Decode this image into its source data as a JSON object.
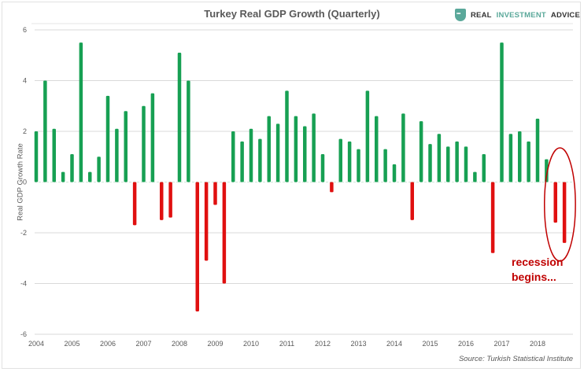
{
  "header": {
    "title": "Turkey Real GDP Growth (Quarterly)",
    "logo": {
      "icon": "shield-chat-icon",
      "word1": "REAL",
      "word2": "INVESTMENT",
      "word3": "ADVICE"
    }
  },
  "annotation": {
    "line1": "recession",
    "line2": "begins...",
    "color": "#c00000"
  },
  "source": "Source: Turkish Statistical Institute",
  "colors": {
    "positive": "#17a053",
    "negative": "#e01010",
    "grid": "#d9d9d9",
    "circle": "#c00000"
  },
  "chart_data": {
    "type": "bar",
    "title": "Turkey Real GDP Growth (Quarterly)",
    "xlabel": "",
    "ylabel": "Real GDP Growth Rate",
    "ylim": [
      -6,
      6
    ],
    "yticks": [
      -6,
      -4,
      -2,
      0,
      2,
      4,
      6
    ],
    "grid": true,
    "xtick_labels": [
      "2004",
      "2005",
      "2006",
      "2007",
      "2008",
      "2009",
      "2010",
      "2011",
      "2012",
      "2013",
      "2014",
      "2015",
      "2016",
      "2017",
      "2018"
    ],
    "x_start": 2004.0,
    "x_step": 0.25,
    "values": [
      2.0,
      4.0,
      2.1,
      0.4,
      1.1,
      5.5,
      0.4,
      1.0,
      3.4,
      2.1,
      2.8,
      -1.7,
      3.0,
      3.5,
      -1.5,
      -1.4,
      5.1,
      4.0,
      -5.1,
      -3.1,
      -0.9,
      -4.0,
      2.0,
      1.6,
      2.1,
      1.7,
      2.6,
      2.3,
      3.6,
      2.6,
      2.2,
      2.7,
      1.1,
      -0.4,
      1.7,
      1.6,
      1.3,
      3.6,
      2.6,
      1.3,
      0.7,
      2.7,
      -1.5,
      2.4,
      1.5,
      1.9,
      1.4,
      1.6,
      1.4,
      0.4,
      1.1,
      -2.8,
      5.5,
      1.9,
      2.0,
      1.6,
      2.5,
      0.9,
      -1.6,
      -2.4
    ],
    "highlight": {
      "label": "recession begins...",
      "last_n_bars": 2
    }
  }
}
